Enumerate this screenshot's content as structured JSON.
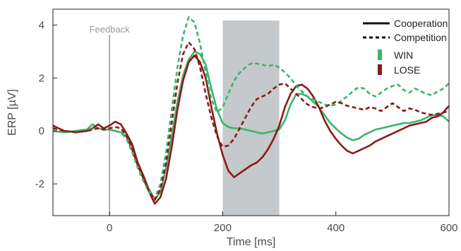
{
  "chart_data": {
    "type": "line",
    "title": "",
    "xlabel": "Time [ms]",
    "ylabel": "ERP [µV]",
    "xlim": [
      -100,
      600
    ],
    "ylim": [
      -3.2,
      4.6
    ],
    "xticks": [
      0,
      200,
      400,
      600
    ],
    "yticks": [
      -2,
      0,
      2,
      4
    ],
    "grid": false,
    "legend_placement": "top-right",
    "legend": {
      "line_styles": [
        {
          "label": "Cooperation",
          "style": "solid"
        },
        {
          "label": "Competition",
          "style": "dashed"
        }
      ],
      "outcomes": [
        {
          "label": "WIN",
          "color": "#3cb46e"
        },
        {
          "label": "LOSE",
          "color": "#8b1a1a"
        }
      ]
    },
    "annotations": [
      {
        "type": "vertical-line",
        "x": 0,
        "label": "Feedback",
        "color": "#9a9a9a"
      }
    ],
    "shaded_region": {
      "x_start": 200,
      "x_end": 300,
      "color": "#c5c9cb"
    },
    "series": [
      {
        "name": "WIN Cooperation",
        "color": "#3cb46e",
        "style": "solid",
        "x": [
          -100,
          -80,
          -60,
          -40,
          -30,
          -20,
          -10,
          0,
          10,
          20,
          30,
          40,
          50,
          60,
          70,
          80,
          90,
          100,
          110,
          120,
          130,
          140,
          150,
          160,
          170,
          180,
          190,
          200,
          210,
          220,
          230,
          240,
          250,
          260,
          270,
          280,
          290,
          300,
          310,
          320,
          330,
          340,
          350,
          360,
          370,
          380,
          390,
          400,
          410,
          420,
          430,
          440,
          450,
          460,
          470,
          480,
          490,
          500,
          510,
          520,
          530,
          540,
          550,
          560,
          570,
          580,
          590,
          600
        ],
        "y": [
          0.0,
          -0.05,
          0.0,
          0.05,
          0.25,
          0.1,
          0.05,
          0.05,
          0.0,
          -0.05,
          -0.2,
          -0.6,
          -1.2,
          -1.7,
          -2.2,
          -2.6,
          -2.3,
          -1.4,
          -0.2,
          1.1,
          2.1,
          2.7,
          3.0,
          2.9,
          2.5,
          1.6,
          0.8,
          0.3,
          0.15,
          0.1,
          0.1,
          0.05,
          0.0,
          -0.05,
          -0.1,
          -0.05,
          0.0,
          0.05,
          0.4,
          1.0,
          1.4,
          1.4,
          1.3,
          1.1,
          0.9,
          0.6,
          0.3,
          0.1,
          -0.1,
          -0.25,
          -0.35,
          -0.3,
          -0.15,
          -0.05,
          0.05,
          0.1,
          0.15,
          0.2,
          0.25,
          0.3,
          0.3,
          0.35,
          0.4,
          0.5,
          0.6,
          0.6,
          0.55,
          0.35
        ]
      },
      {
        "name": "LOSE Cooperation",
        "color": "#8b1a1a",
        "style": "solid",
        "x": [
          -100,
          -80,
          -60,
          -40,
          -30,
          -20,
          -10,
          0,
          10,
          20,
          30,
          40,
          50,
          60,
          70,
          80,
          90,
          100,
          110,
          120,
          130,
          140,
          150,
          160,
          170,
          180,
          190,
          200,
          210,
          220,
          230,
          240,
          250,
          260,
          270,
          280,
          290,
          300,
          310,
          320,
          330,
          340,
          350,
          360,
          370,
          380,
          390,
          400,
          410,
          420,
          430,
          440,
          450,
          460,
          470,
          480,
          490,
          500,
          510,
          520,
          530,
          540,
          550,
          560,
          570,
          580,
          590,
          600
        ],
        "y": [
          0.2,
          0.0,
          -0.05,
          0.0,
          0.1,
          0.25,
          0.1,
          0.2,
          0.35,
          0.25,
          -0.1,
          -0.5,
          -1.2,
          -1.7,
          -2.3,
          -2.75,
          -2.5,
          -1.8,
          -0.6,
          0.8,
          1.9,
          2.6,
          2.85,
          2.6,
          2.0,
          0.9,
          -0.1,
          -0.9,
          -1.5,
          -1.75,
          -1.6,
          -1.45,
          -1.3,
          -1.2,
          -1.0,
          -0.7,
          -0.3,
          0.2,
          0.9,
          1.4,
          1.7,
          1.75,
          1.6,
          1.3,
          0.9,
          0.4,
          0.0,
          -0.3,
          -0.55,
          -0.75,
          -0.85,
          -0.75,
          -0.65,
          -0.55,
          -0.4,
          -0.3,
          -0.2,
          -0.1,
          0.0,
          0.1,
          0.2,
          0.25,
          0.3,
          0.35,
          0.5,
          0.55,
          0.7,
          0.95
        ]
      },
      {
        "name": "WIN Competition",
        "color": "#3cb46e",
        "style": "dashed",
        "x": [
          -100,
          -80,
          -60,
          -40,
          -30,
          -20,
          -10,
          0,
          10,
          20,
          30,
          40,
          50,
          60,
          70,
          80,
          90,
          100,
          110,
          120,
          130,
          140,
          150,
          160,
          170,
          180,
          190,
          200,
          210,
          220,
          230,
          240,
          250,
          260,
          270,
          280,
          290,
          300,
          310,
          320,
          330,
          340,
          350,
          360,
          370,
          380,
          390,
          400,
          410,
          420,
          430,
          440,
          450,
          460,
          470,
          480,
          490,
          500,
          510,
          520,
          530,
          540,
          550,
          560,
          570,
          580,
          590,
          600
        ],
        "y": [
          0.0,
          -0.05,
          0.0,
          0.05,
          0.1,
          0.1,
          0.05,
          0.05,
          0.0,
          -0.05,
          -0.3,
          -0.8,
          -1.4,
          -1.9,
          -2.3,
          -2.55,
          -2.0,
          -0.8,
          0.8,
          2.4,
          3.6,
          4.3,
          4.1,
          3.3,
          2.2,
          1.2,
          0.7,
          0.9,
          1.4,
          1.9,
          2.2,
          2.4,
          2.55,
          2.55,
          2.5,
          2.45,
          2.5,
          2.4,
          2.2,
          2.0,
          1.7,
          1.5,
          1.3,
          1.2,
          1.1,
          1.0,
          0.95,
          1.0,
          1.15,
          1.3,
          1.5,
          1.65,
          1.6,
          1.4,
          1.3,
          1.45,
          1.6,
          1.7,
          1.75,
          1.55,
          1.45,
          1.6,
          1.5,
          1.4,
          1.35,
          1.5,
          1.6,
          1.8
        ]
      },
      {
        "name": "LOSE Competition",
        "color": "#8b1a1a",
        "style": "dashed",
        "x": [
          -100,
          -80,
          -60,
          -40,
          -30,
          -20,
          -10,
          0,
          10,
          20,
          30,
          40,
          50,
          60,
          70,
          80,
          90,
          100,
          110,
          120,
          130,
          140,
          150,
          160,
          170,
          180,
          190,
          200,
          210,
          220,
          230,
          240,
          250,
          260,
          270,
          280,
          290,
          300,
          310,
          320,
          330,
          340,
          350,
          360,
          370,
          380,
          390,
          400,
          410,
          420,
          430,
          440,
          450,
          460,
          470,
          480,
          490,
          500,
          510,
          520,
          530,
          540,
          550,
          560,
          570,
          580,
          590,
          600
        ],
        "y": [
          0.1,
          0.0,
          -0.05,
          0.0,
          0.05,
          0.1,
          0.05,
          0.1,
          0.15,
          0.1,
          -0.2,
          -0.7,
          -1.3,
          -1.8,
          -2.3,
          -2.6,
          -2.2,
          -1.2,
          0.3,
          1.8,
          2.9,
          3.35,
          3.1,
          2.4,
          1.4,
          0.5,
          -0.2,
          -0.6,
          -0.55,
          -0.3,
          0.1,
          0.5,
          0.9,
          1.2,
          1.3,
          1.4,
          1.6,
          1.75,
          1.8,
          1.6,
          1.4,
          1.2,
          1.0,
          0.9,
          0.85,
          0.9,
          1.0,
          1.1,
          1.05,
          0.95,
          0.9,
          0.85,
          0.8,
          0.9,
          0.85,
          0.75,
          0.9,
          1.05,
          0.9,
          0.75,
          0.85,
          0.8,
          0.7,
          0.65,
          0.6,
          0.65,
          0.7,
          0.75
        ]
      }
    ]
  }
}
